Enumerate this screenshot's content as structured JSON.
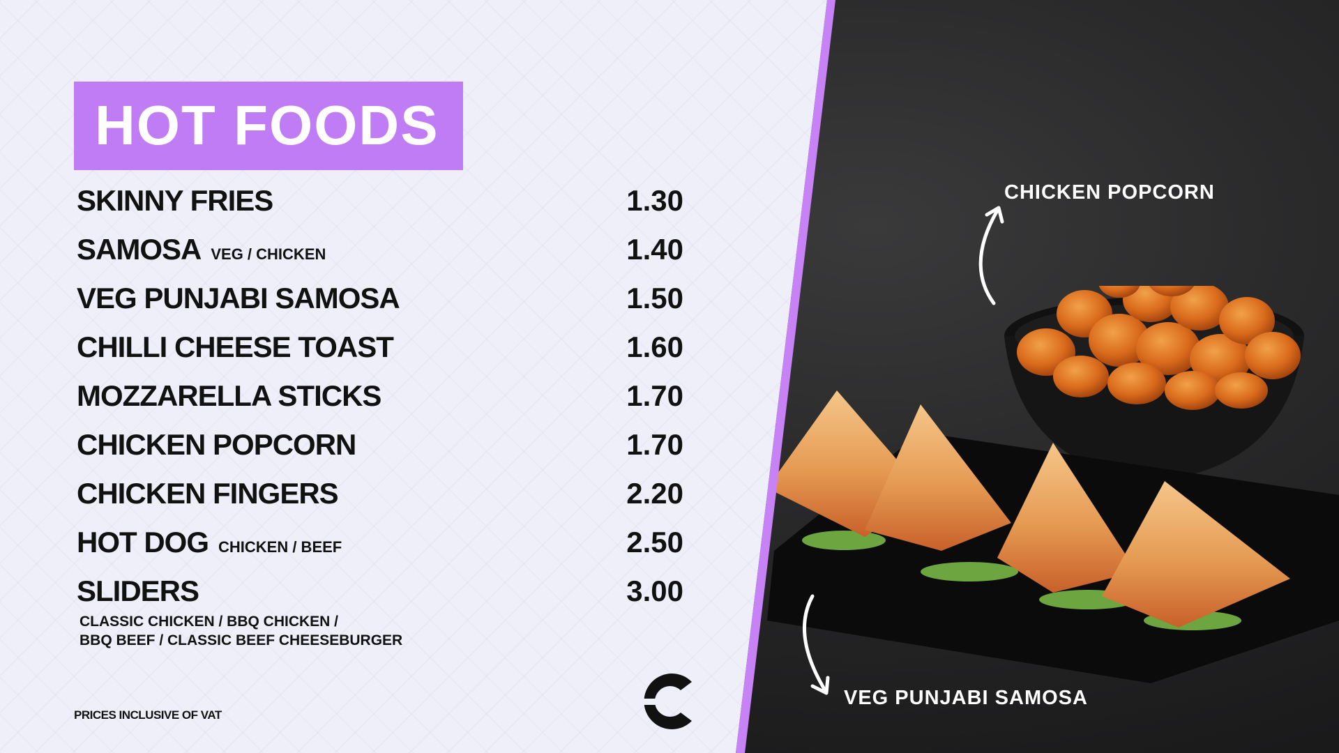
{
  "title": "HOT FOODS",
  "menu": [
    {
      "name": "SKINNY FRIES",
      "sub": "",
      "price": "1.30"
    },
    {
      "name": "SAMOSA",
      "sub": "VEG / CHICKEN",
      "price": "1.40"
    },
    {
      "name": "VEG PUNJABI SAMOSA",
      "sub": "",
      "price": "1.50"
    },
    {
      "name": "CHILLI CHEESE TOAST",
      "sub": "",
      "price": "1.60"
    },
    {
      "name": "MOZZARELLA STICKS",
      "sub": "",
      "price": "1.70"
    },
    {
      "name": "CHICKEN POPCORN",
      "sub": "",
      "price": "1.70"
    },
    {
      "name": "CHICKEN FINGERS",
      "sub": "",
      "price": "2.20"
    },
    {
      "name": "HOT DOG",
      "sub": "CHICKEN / BEEF",
      "price": "2.50"
    },
    {
      "name": "SLIDERS",
      "sub": "",
      "price": "3.00"
    }
  ],
  "sliders_options": [
    "CLASSIC CHICKEN / BBQ CHICKEN /",
    "BBQ BEEF / CLASSIC BEEF CHEESEBURGER"
  ],
  "footnote": "PRICES INCLUSIVE OF VAT",
  "food_labels": {
    "popcorn": "CHICKEN POPCORN",
    "samosa": "VEG PUNJABI SAMOSA"
  },
  "colors": {
    "accent": "#c07cf4",
    "panel": "#eeeff9",
    "text": "#111111"
  },
  "icons": {
    "logo": "c-logo-icon",
    "arrow": "curved-arrow-icon"
  }
}
